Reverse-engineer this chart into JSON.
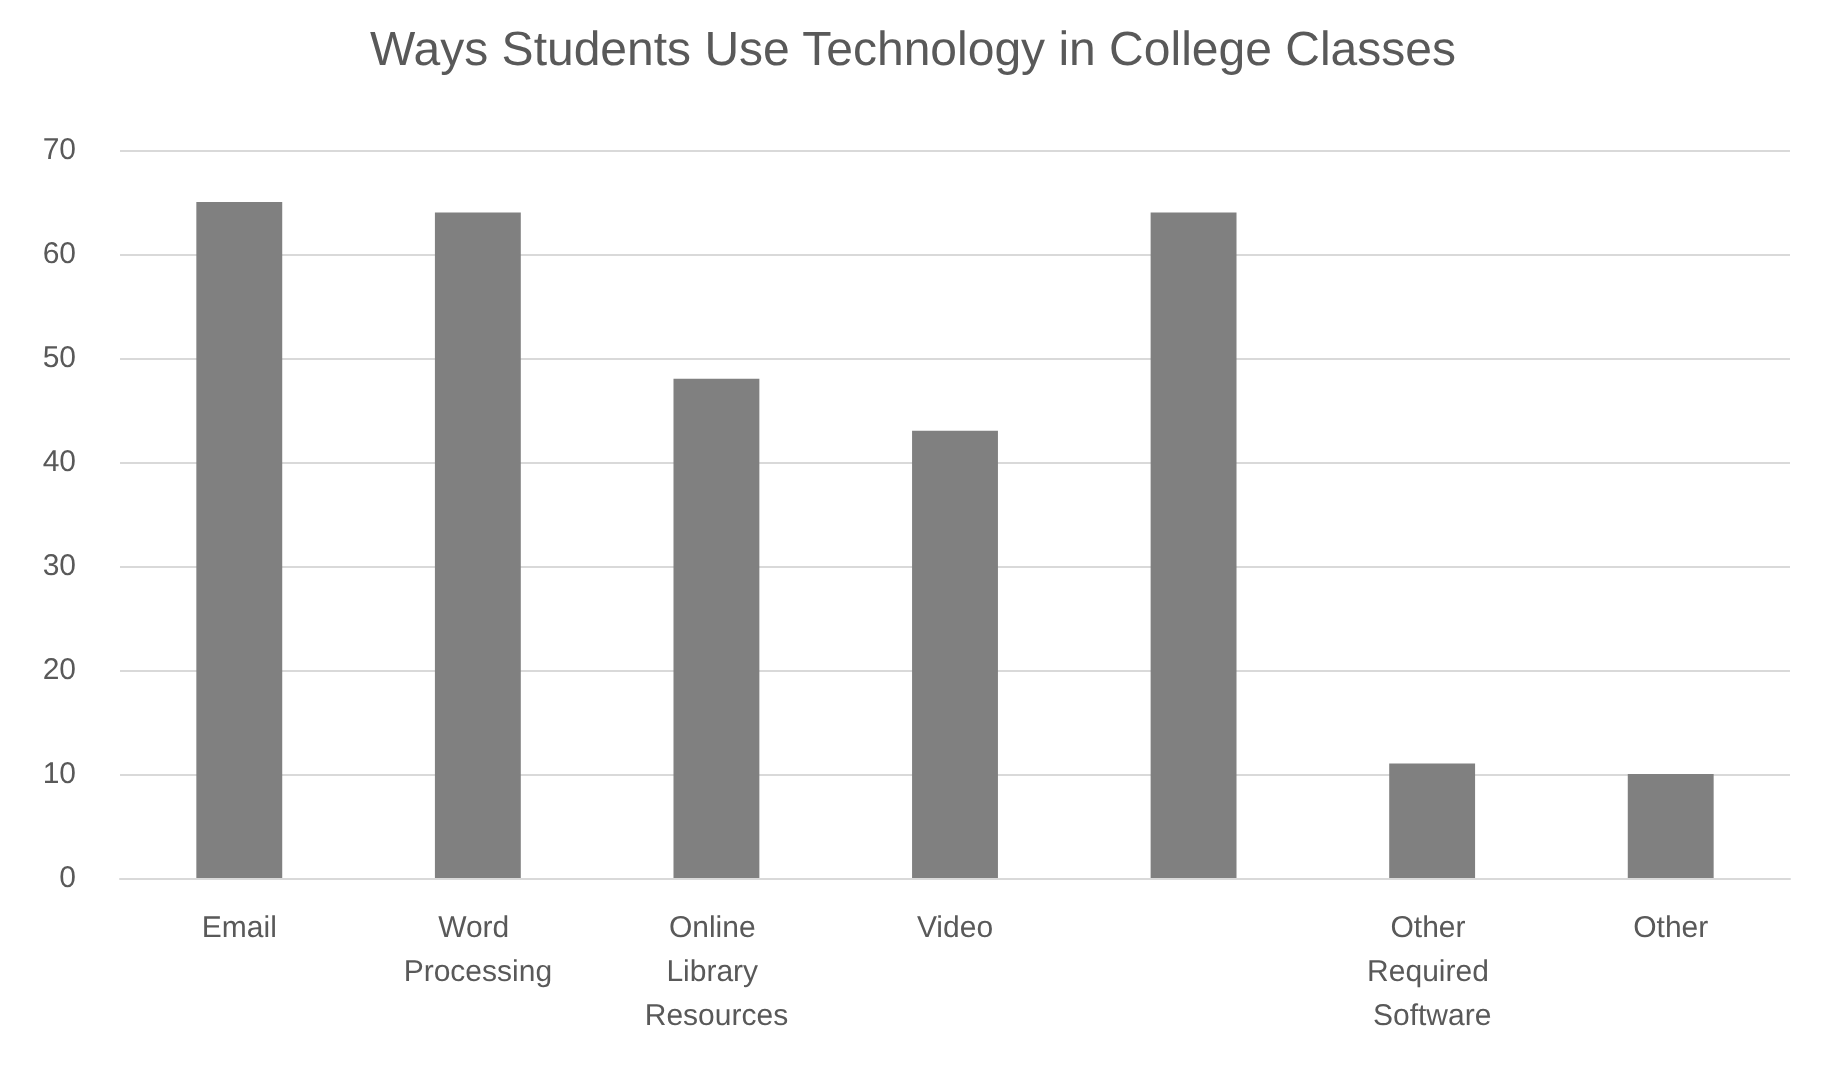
{
  "chart_data": {
    "type": "bar",
    "title": "Ways Students Use Technology in College Classes",
    "categories": [
      "Email",
      "Word Processing",
      "Online Library Resources",
      "Video",
      null,
      "Other Required Software",
      "Other"
    ],
    "values": [
      65,
      64,
      48,
      43,
      64,
      11,
      10
    ],
    "color": "#808080",
    "ylim": [
      0,
      70
    ],
    "yticks": [
      0,
      10,
      20,
      30,
      40,
      50,
      60,
      70
    ],
    "grid": "y"
  }
}
